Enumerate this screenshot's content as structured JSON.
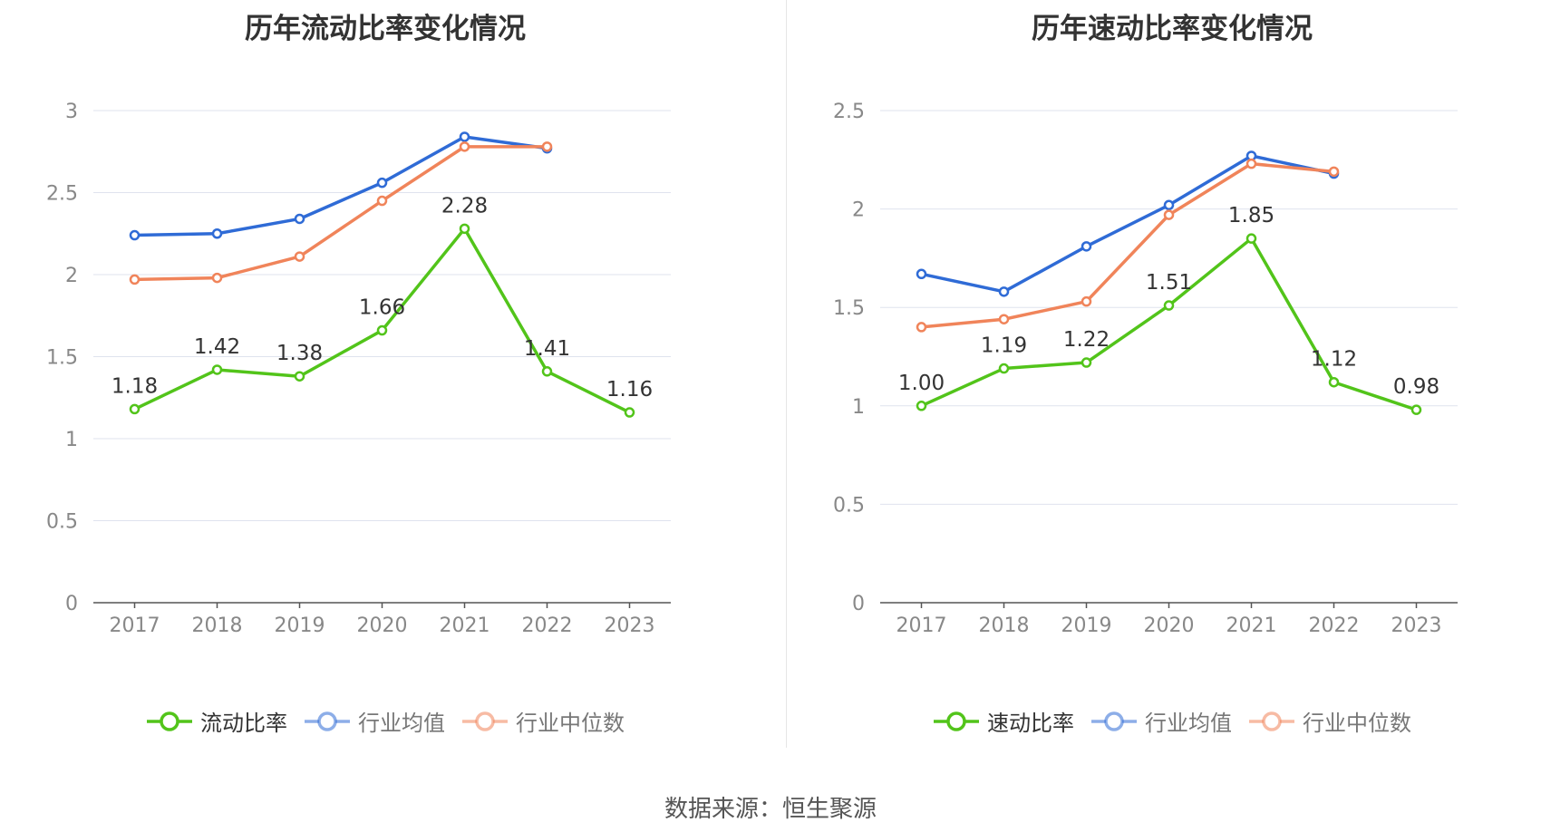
{
  "source_label": "数据来源：恒生聚源",
  "chart_data": [
    {
      "type": "line",
      "title": "历年流动比率变化情况",
      "categories": [
        "2017",
        "2018",
        "2019",
        "2020",
        "2021",
        "2022",
        "2023"
      ],
      "ylim": [
        0,
        3
      ],
      "yticks": [
        "0",
        "0.5",
        "1",
        "1.5",
        "2",
        "2.5",
        "3"
      ],
      "grid": true,
      "legend_position": "bottom",
      "series": [
        {
          "name": "流动比率",
          "color": "#52c41a",
          "values": [
            1.18,
            1.42,
            1.38,
            1.66,
            2.28,
            1.41,
            1.16
          ],
          "labels": [
            "1.18",
            "1.42",
            "1.38",
            "1.66",
            "2.28",
            "1.41",
            "1.16"
          ]
        },
        {
          "name": "行业均值",
          "color": "#2f6bd6",
          "values": [
            2.24,
            2.25,
            2.34,
            2.56,
            2.84,
            2.77,
            null
          ]
        },
        {
          "name": "行业中位数",
          "color": "#f0845a",
          "values": [
            1.97,
            1.98,
            2.11,
            2.45,
            2.78,
            2.78,
            null
          ]
        }
      ]
    },
    {
      "type": "line",
      "title": "历年速动比率变化情况",
      "categories": [
        "2017",
        "2018",
        "2019",
        "2020",
        "2021",
        "2022",
        "2023"
      ],
      "ylim": [
        0,
        2.5
      ],
      "yticks": [
        "0",
        "0.5",
        "1",
        "1.5",
        "2",
        "2.5"
      ],
      "grid": true,
      "legend_position": "bottom",
      "series": [
        {
          "name": "速动比率",
          "color": "#52c41a",
          "values": [
            1.0,
            1.19,
            1.22,
            1.51,
            1.85,
            1.12,
            0.98
          ],
          "labels": [
            "1.00",
            "1.19",
            "1.22",
            "1.51",
            "1.85",
            "1.12",
            "0.98"
          ]
        },
        {
          "name": "行业均值",
          "color": "#2f6bd6",
          "values": [
            1.67,
            1.58,
            1.81,
            2.02,
            2.27,
            2.18,
            null
          ]
        },
        {
          "name": "行业中位数",
          "color": "#f0845a",
          "values": [
            1.4,
            1.44,
            1.53,
            1.97,
            2.23,
            2.19,
            null
          ]
        }
      ]
    }
  ]
}
